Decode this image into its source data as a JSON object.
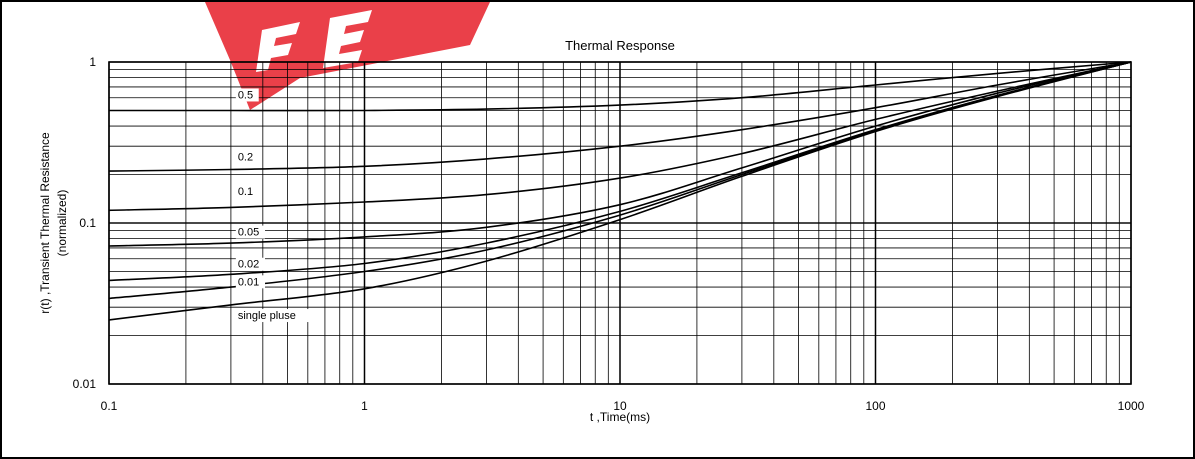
{
  "chart_data": {
    "type": "line",
    "title": "Thermal Response",
    "xlabel": "t ,Time(ms)",
    "ylabel": "r(t) ,Transient Thermal Resistance",
    "ylabel2": "(normalized)",
    "xscale": "log",
    "yscale": "log",
    "xlim": [
      0.1,
      1000
    ],
    "ylim": [
      0.01,
      1
    ],
    "grid": true,
    "x_ticks": [
      "0.1",
      "1",
      "10",
      "100",
      "1000"
    ],
    "y_ticks": [
      "0.01",
      "0.1",
      "1"
    ],
    "series": [
      {
        "name": "0.5",
        "x": [
          0.1,
          0.3,
          1,
          3,
          10,
          30,
          100,
          300,
          1000
        ],
        "y": [
          0.5,
          0.5,
          0.5,
          0.51,
          0.54,
          0.6,
          0.72,
          0.85,
          1.0
        ]
      },
      {
        "name": "0.2",
        "x": [
          0.1,
          0.3,
          1,
          3,
          10,
          30,
          100,
          300,
          1000
        ],
        "y": [
          0.21,
          0.215,
          0.225,
          0.25,
          0.3,
          0.38,
          0.52,
          0.72,
          1.0
        ]
      },
      {
        "name": "0.1",
        "x": [
          0.1,
          0.3,
          1,
          3,
          10,
          30,
          100,
          300,
          1000
        ],
        "y": [
          0.12,
          0.125,
          0.135,
          0.15,
          0.19,
          0.27,
          0.44,
          0.66,
          1.0
        ]
      },
      {
        "name": "0.05",
        "x": [
          0.1,
          0.3,
          1,
          3,
          10,
          30,
          100,
          300,
          1000
        ],
        "y": [
          0.072,
          0.075,
          0.082,
          0.094,
          0.13,
          0.22,
          0.4,
          0.64,
          1.0
        ]
      },
      {
        "name": "0.02",
        "x": [
          0.1,
          0.3,
          1,
          3,
          10,
          30,
          100,
          300,
          1000
        ],
        "y": [
          0.044,
          0.048,
          0.056,
          0.075,
          0.118,
          0.205,
          0.38,
          0.62,
          1.0
        ]
      },
      {
        "name": "0.01",
        "x": [
          0.1,
          0.3,
          1,
          3,
          10,
          30,
          100,
          300,
          1000
        ],
        "y": [
          0.034,
          0.04,
          0.05,
          0.068,
          0.112,
          0.2,
          0.375,
          0.615,
          1.0
        ]
      },
      {
        "name": "single pluse",
        "x": [
          0.1,
          0.3,
          1,
          3,
          10,
          30,
          100,
          300,
          1000
        ],
        "y": [
          0.025,
          0.031,
          0.039,
          0.058,
          0.105,
          0.195,
          0.37,
          0.61,
          1.0
        ]
      }
    ]
  },
  "watermark": {
    "text": "FE",
    "color": "#e8303a"
  }
}
